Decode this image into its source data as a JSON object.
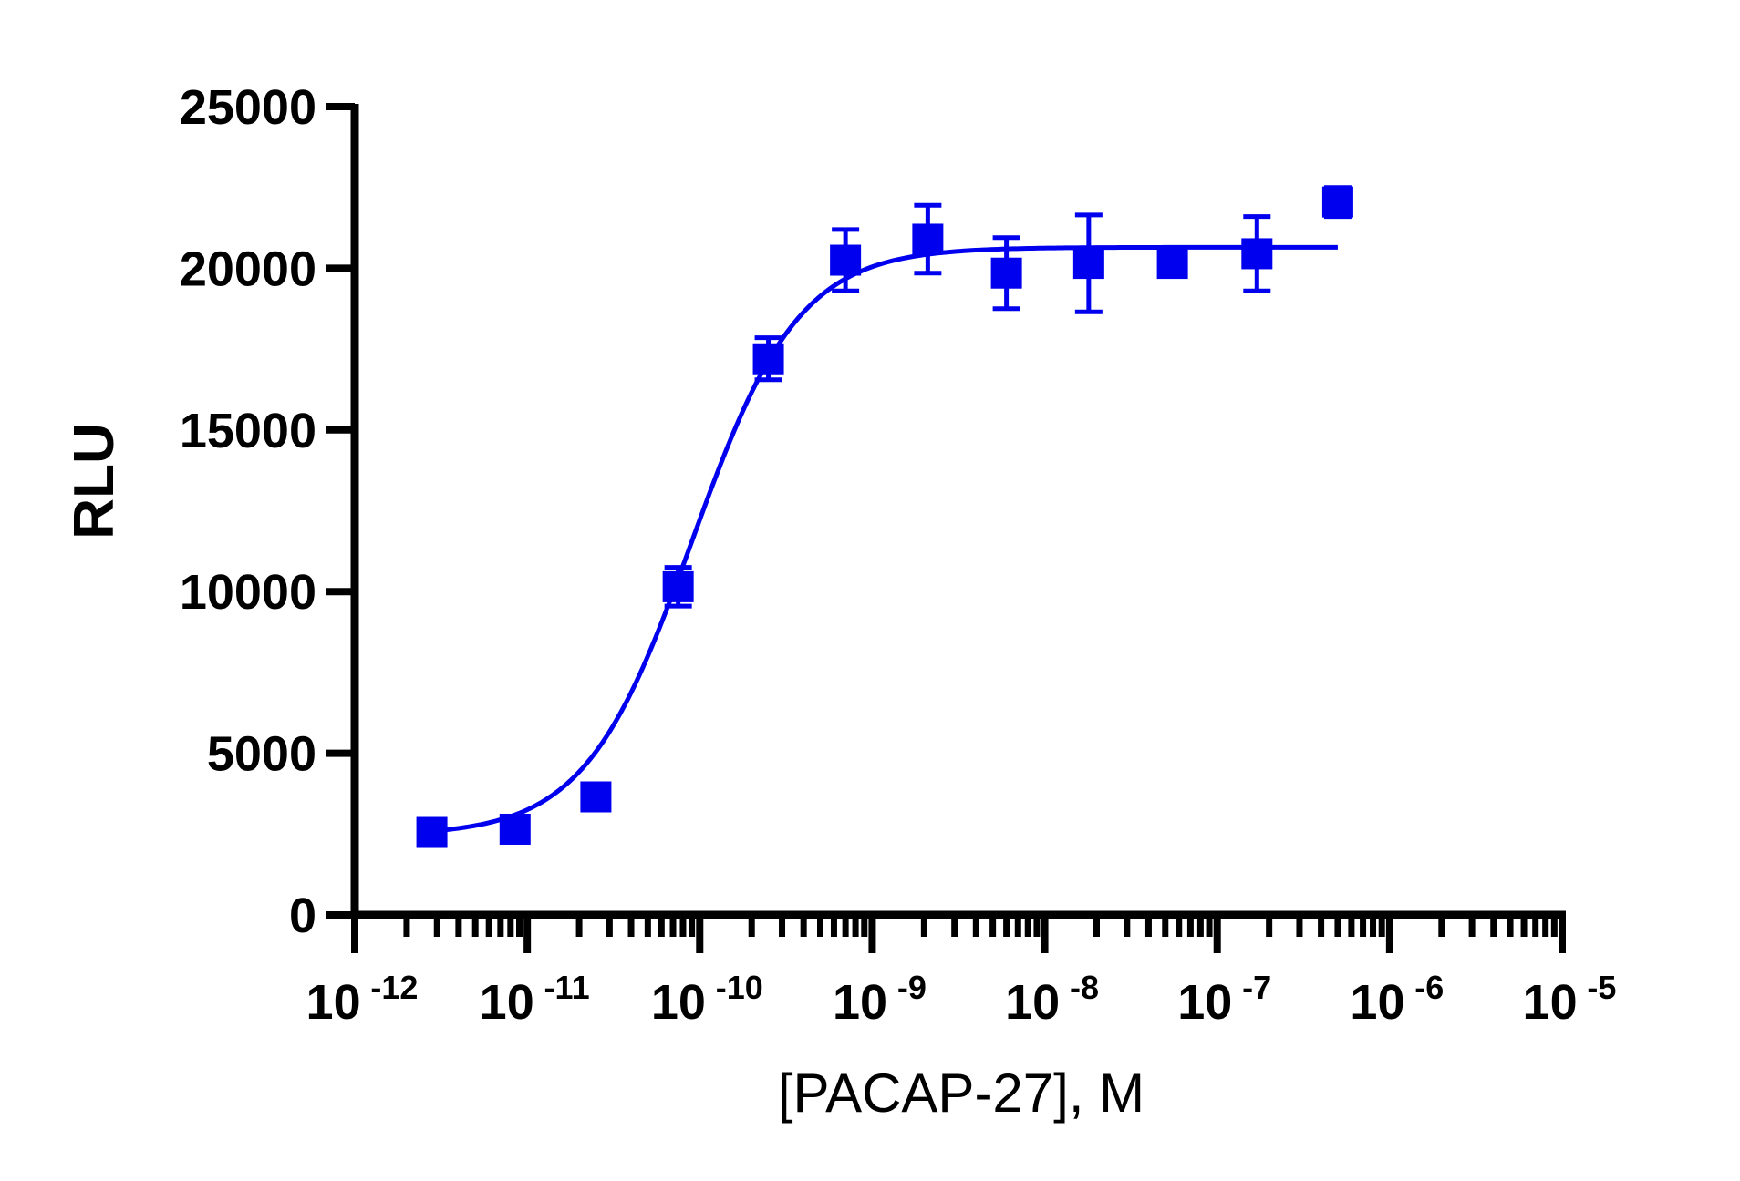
{
  "chart_data": {
    "type": "scatter",
    "xlabel": "[PACAP-27], M",
    "ylabel": "RLU",
    "x_scale": "log",
    "xlim": [
      1e-12,
      1e-05
    ],
    "ylim": [
      0,
      25000
    ],
    "y_ticks": [
      0,
      5000,
      10000,
      15000,
      20000,
      25000
    ],
    "y_tick_labels": [
      "0",
      "5000",
      "10000",
      "15000",
      "20000",
      "25000"
    ],
    "x_ticks": [
      1e-12,
      1e-11,
      1e-10,
      1e-09,
      1e-08,
      1e-07,
      1e-06,
      1e-05
    ],
    "x_tick_labels": [
      {
        "base": "10",
        "exp": "-12"
      },
      {
        "base": "10",
        "exp": "-11"
      },
      {
        "base": "10",
        "exp": "-10"
      },
      {
        "base": "10",
        "exp": "-9"
      },
      {
        "base": "10",
        "exp": "-8"
      },
      {
        "base": "10",
        "exp": "-7"
      },
      {
        "base": "10",
        "exp": "-6"
      },
      {
        "base": "10",
        "exp": "-5"
      }
    ],
    "grid": false,
    "color": "#0000ee",
    "series": [
      {
        "points": [
          {
            "x": 2.8e-12,
            "y": 2550,
            "err": 150
          },
          {
            "x": 8.5e-12,
            "y": 2650,
            "err": 150
          },
          {
            "x": 2.5e-11,
            "y": 3650,
            "err": 200
          },
          {
            "x": 7.5e-11,
            "y": 10150,
            "err": 600
          },
          {
            "x": 2.5e-10,
            "y": 17200,
            "err": 650
          },
          {
            "x": 7e-10,
            "y": 20250,
            "err": 950
          },
          {
            "x": 2.1e-09,
            "y": 20900,
            "err": 1050
          },
          {
            "x": 6e-09,
            "y": 19850,
            "err": 1100
          },
          {
            "x": 1.8e-08,
            "y": 20150,
            "err": 1500
          },
          {
            "x": 5.5e-08,
            "y": 20150,
            "err": 300
          },
          {
            "x": 1.7e-07,
            "y": 20450,
            "err": 1150
          },
          {
            "x": 5e-07,
            "y": 22050,
            "err": 450
          }
        ],
        "fit": {
          "model": "four-parameter logistic",
          "bottom": 2450,
          "top": 20650,
          "ec50": 9e-11,
          "hill": 1.4,
          "x_range": [
            2.8e-12,
            5e-07
          ]
        }
      }
    ]
  }
}
